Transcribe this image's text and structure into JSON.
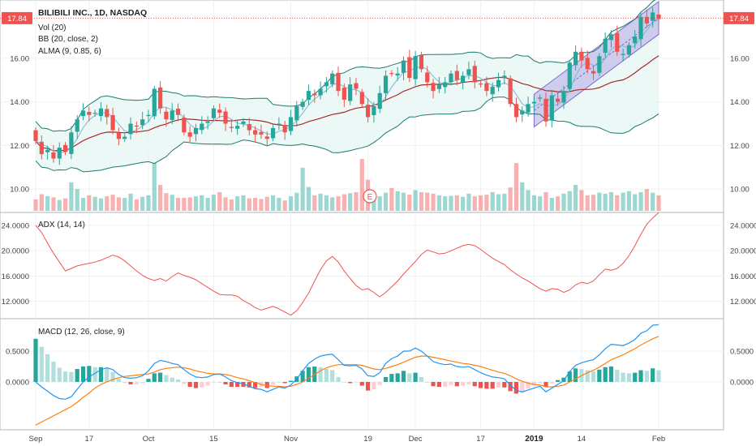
{
  "header": {
    "symbol": "BILIBILI INC., 1D, NASDAQ",
    "vol_label": "Vol (20)",
    "bb_label": "BB (20, close, 2)",
    "alma_label": "ALMA (9, 0.85, 6)",
    "adx_label": "ADX (14, 14)",
    "macd_label": "MACD (12, 26, close, 9)",
    "last_price": "17.84",
    "earnings_marker": "E"
  },
  "colors": {
    "up": "#26a69a",
    "down": "#ef5350",
    "bb_band": "#1b7a6e",
    "bb_fill": "#e6f6f3",
    "basis": "#a52a2a",
    "alma": "#7fb6d6",
    "adx": "#ef5350",
    "macd": "#2196f3",
    "signal": "#ff7f0e",
    "channel_fill": "#b6a8e6",
    "channel_line": "#7e6bd0",
    "price_tag": "#ef5350"
  },
  "x_axis": {
    "labels": [
      {
        "i": 0,
        "text": "Sep"
      },
      {
        "i": 9,
        "text": "17"
      },
      {
        "i": 19,
        "text": "Oct"
      },
      {
        "i": 30,
        "text": "15"
      },
      {
        "i": 43,
        "text": "Nov"
      },
      {
        "i": 56,
        "text": "19"
      },
      {
        "i": 64,
        "text": "Dec"
      },
      {
        "i": 75,
        "text": "17"
      },
      {
        "i": 84,
        "text": "2019",
        "bold": true
      },
      {
        "i": 92,
        "text": "14"
      },
      {
        "i": 105,
        "text": "Feb"
      }
    ]
  },
  "chart_data": [
    {
      "type": "candlestick",
      "title": "BILIBILI INC., 1D, NASDAQ",
      "y_ticks": [
        "10.00",
        "12.00",
        "14.00",
        "16.00"
      ],
      "y_tick_values": [
        10,
        12,
        14,
        16
      ],
      "ylim": [
        9.0,
        18.6
      ],
      "last_price": 17.84,
      "grid": true,
      "ohlc_close": [
        12.2,
        11.6,
        11.8,
        11.4,
        11.9,
        11.7,
        12.6,
        13.2,
        13.6,
        13.4,
        13.5,
        13.7,
        13.3,
        12.7,
        12.3,
        12.4,
        13.0,
        12.9,
        13.2,
        13.4,
        14.6,
        13.7,
        13.2,
        13.6,
        13.4,
        12.6,
        12.4,
        12.8,
        13.0,
        13.1,
        13.7,
        13.5,
        13.0,
        12.8,
        12.9,
        13.1,
        12.7,
        12.5,
        12.5,
        12.3,
        12.8,
        13.0,
        12.6,
        13.3,
        13.8,
        14.0,
        14.5,
        14.3,
        14.6,
        14.9,
        15.3,
        14.5,
        14.1,
        14.8,
        14.6,
        13.9,
        13.3,
        13.8,
        14.4,
        15.2,
        15.3,
        15.3,
        15.9,
        15.1,
        16.1,
        15.5,
        14.9,
        14.5,
        14.8,
        14.9,
        15.3,
        15.0,
        15.2,
        15.5,
        14.9,
        14.8,
        14.5,
        14.7,
        15.0,
        15.2,
        13.9,
        13.3,
        13.6,
        13.9,
        14.0,
        14.2,
        13.1,
        14.3,
        14.0,
        14.5,
        15.8,
        16.3,
        15.9,
        15.5,
        15.3,
        16.1,
        16.9,
        17.1,
        16.3,
        16.2,
        16.6,
        17.0,
        17.9,
        17.6,
        18.1,
        17.8
      ],
      "volume": [
        0.22,
        0.32,
        0.28,
        0.26,
        0.21,
        0.24,
        0.55,
        0.42,
        0.25,
        0.3,
        0.27,
        0.24,
        0.28,
        0.31,
        0.26,
        0.25,
        0.33,
        0.22,
        0.27,
        0.3,
        0.92,
        0.5,
        0.34,
        0.31,
        0.25,
        0.25,
        0.26,
        0.28,
        0.3,
        0.25,
        0.31,
        0.36,
        0.26,
        0.22,
        0.28,
        0.3,
        0.24,
        0.25,
        0.23,
        0.27,
        0.3,
        0.25,
        0.2,
        0.28,
        0.35,
        0.83,
        0.46,
        0.3,
        0.33,
        0.3,
        0.26,
        0.28,
        0.32,
        0.34,
        0.36,
        1.0,
        0.6,
        0.26,
        0.28,
        0.35,
        0.44,
        0.38,
        0.35,
        0.31,
        0.4,
        0.36,
        0.35,
        0.33,
        0.3,
        0.28,
        0.29,
        0.3,
        0.27,
        0.33,
        0.28,
        0.3,
        0.31,
        0.36,
        0.32,
        0.33,
        0.45,
        0.92,
        0.55,
        0.4,
        0.3,
        0.28,
        0.36,
        0.25,
        0.28,
        0.33,
        0.38,
        0.5,
        0.4,
        0.3,
        0.31,
        0.35,
        0.33,
        0.36,
        0.3,
        0.35,
        0.38,
        0.32,
        0.36,
        0.42,
        0.35,
        0.3
      ]
    },
    {
      "type": "line",
      "title": "ADX (14, 14)",
      "y_ticks": [
        "12.0000",
        "16.0000",
        "20.0000",
        "24.0000"
      ],
      "y_tick_values": [
        12,
        16,
        20,
        24
      ],
      "ylim": [
        9.5,
        25.8
      ],
      "series": [
        {
          "values": [
            24.0,
            22.9,
            21.2,
            19.6,
            18.2,
            16.8,
            17.2,
            17.6,
            17.8,
            18.0,
            18.2,
            18.5,
            18.9,
            19.3,
            19.0,
            18.4,
            17.6,
            16.8,
            16.1,
            15.6,
            15.3,
            15.6,
            15.2,
            15.9,
            16.5,
            16.1,
            15.8,
            15.4,
            14.8,
            14.2,
            13.6,
            13.1,
            13.0,
            13.0,
            12.8,
            12.1,
            11.6,
            11.0,
            10.6,
            10.9,
            11.2,
            10.8,
            10.3,
            9.8,
            10.5,
            11.8,
            13.3,
            15.2,
            17.0,
            18.4,
            19.1,
            18.2,
            16.8,
            15.6,
            14.5,
            13.8,
            14.0,
            13.4,
            12.7,
            13.4,
            14.3,
            15.2,
            16.3,
            17.3,
            18.3,
            19.4,
            20.1,
            19.8,
            19.5,
            19.6,
            20.0,
            20.4,
            20.8,
            21.0,
            20.8,
            20.2,
            19.5,
            18.8,
            18.3,
            17.8,
            17.0,
            16.3,
            15.7,
            15.2,
            14.6,
            14.0,
            13.6,
            14.0,
            13.9,
            13.4,
            13.8,
            14.6,
            15.0,
            14.8,
            15.2,
            16.2,
            17.1,
            16.9,
            17.2,
            18.0,
            19.2,
            20.8,
            22.6,
            24.2,
            25.2,
            26.0
          ]
        }
      ]
    },
    {
      "type": "line",
      "title": "MACD (12, 26, close, 9)",
      "y_ticks": [
        "0.0000",
        "0.5000"
      ],
      "y_tick_values": [
        0,
        0.5
      ],
      "ylim": [
        -0.75,
        1.0
      ],
      "series": [
        {
          "values": [
            0.0,
            -0.08,
            -0.15,
            -0.22,
            -0.27,
            -0.28,
            -0.24,
            -0.12,
            0.0,
            0.08,
            0.14,
            0.2,
            0.23,
            0.2,
            0.12,
            0.07,
            0.06,
            0.07,
            0.1,
            0.18,
            0.3,
            0.35,
            0.33,
            0.3,
            0.28,
            0.2,
            0.13,
            0.08,
            0.07,
            0.08,
            0.12,
            0.13,
            0.08,
            0.02,
            -0.01,
            -0.03,
            -0.07,
            -0.11,
            -0.12,
            -0.16,
            -0.12,
            -0.08,
            -0.1,
            -0.05,
            0.05,
            0.18,
            0.3,
            0.37,
            0.42,
            0.44,
            0.45,
            0.36,
            0.27,
            0.26,
            0.27,
            0.21,
            0.1,
            0.09,
            0.15,
            0.3,
            0.38,
            0.42,
            0.5,
            0.5,
            0.55,
            0.5,
            0.42,
            0.33,
            0.3,
            0.28,
            0.29,
            0.25,
            0.24,
            0.25,
            0.2,
            0.15,
            0.11,
            0.08,
            0.07,
            0.05,
            -0.05,
            -0.14,
            -0.16,
            -0.13,
            -0.1,
            -0.07,
            -0.16,
            -0.1,
            -0.04,
            0.02,
            0.17,
            0.27,
            0.31,
            0.34,
            0.36,
            0.44,
            0.54,
            0.61,
            0.6,
            0.59,
            0.63,
            0.69,
            0.79,
            0.83,
            0.92,
            0.93
          ]
        },
        {
          "values": [
            -0.7,
            -0.65,
            -0.6,
            -0.55,
            -0.5,
            -0.45,
            -0.4,
            -0.33,
            -0.25,
            -0.18,
            -0.1,
            -0.04,
            0.0,
            0.04,
            0.07,
            0.09,
            0.1,
            0.11,
            0.12,
            0.13,
            0.16,
            0.2,
            0.22,
            0.23,
            0.24,
            0.23,
            0.21,
            0.18,
            0.16,
            0.14,
            0.13,
            0.13,
            0.12,
            0.1,
            0.07,
            0.05,
            0.02,
            -0.01,
            -0.04,
            -0.06,
            -0.07,
            -0.07,
            -0.08,
            -0.07,
            -0.04,
            0.0,
            0.06,
            0.12,
            0.18,
            0.23,
            0.26,
            0.28,
            0.28,
            0.28,
            0.28,
            0.27,
            0.24,
            0.21,
            0.2,
            0.22,
            0.25,
            0.28,
            0.32,
            0.36,
            0.4,
            0.42,
            0.42,
            0.4,
            0.38,
            0.36,
            0.34,
            0.32,
            0.3,
            0.29,
            0.27,
            0.25,
            0.22,
            0.19,
            0.16,
            0.14,
            0.1,
            0.05,
            0.01,
            -0.02,
            -0.04,
            -0.05,
            -0.08,
            -0.08,
            -0.07,
            -0.05,
            0.0,
            0.05,
            0.1,
            0.15,
            0.19,
            0.24,
            0.3,
            0.36,
            0.4,
            0.44,
            0.49,
            0.54,
            0.6,
            0.65,
            0.7,
            0.74
          ]
        }
      ]
    }
  ]
}
